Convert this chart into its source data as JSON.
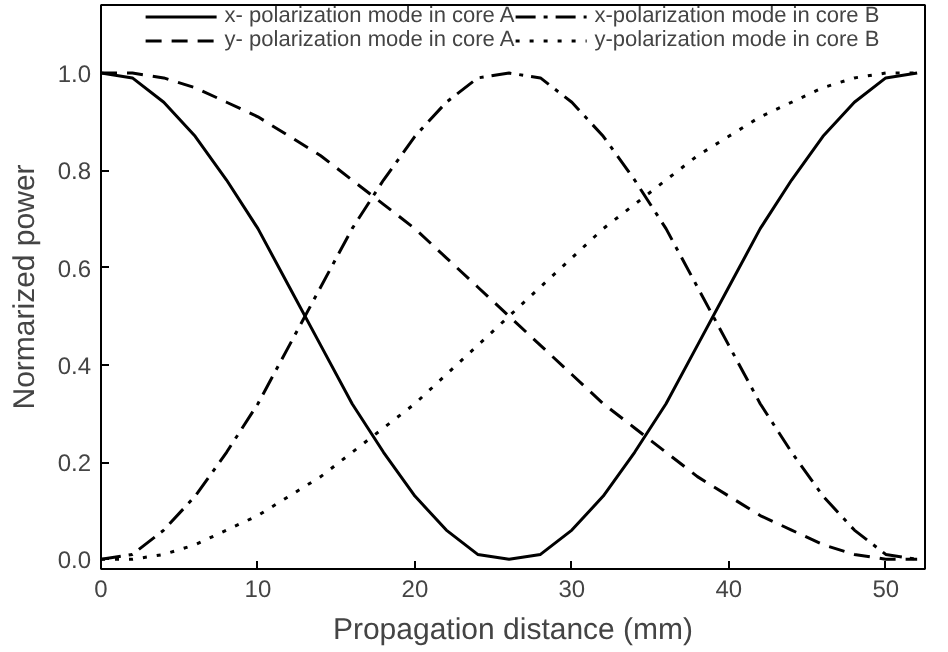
{
  "chart_data": {
    "type": "line",
    "xlabel": "Propagation distance (mm)",
    "ylabel": "Normarized power",
    "x": [
      0,
      2,
      4,
      6,
      8,
      10,
      12,
      14,
      16,
      18,
      20,
      22,
      24,
      26,
      28,
      30,
      32,
      34,
      36,
      38,
      40,
      42,
      44,
      46,
      48,
      50,
      52
    ],
    "series": [
      {
        "name": "x- polarization mode in core A",
        "color": "#000000",
        "line_style": "solid",
        "values": [
          1,
          0.99,
          0.94,
          0.87,
          0.78,
          0.68,
          0.56,
          0.44,
          0.32,
          0.22,
          0.13,
          0.06,
          0.01,
          0,
          0.01,
          0.06,
          0.13,
          0.22,
          0.32,
          0.44,
          0.56,
          0.68,
          0.78,
          0.87,
          0.94,
          0.99,
          1
        ]
      },
      {
        "name": "y- polarization mode in core A",
        "color": "#000000",
        "line_style": "dashed",
        "values": [
          1,
          1,
          0.99,
          0.97,
          0.94,
          0.91,
          0.87,
          0.83,
          0.78,
          0.73,
          0.68,
          0.62,
          0.56,
          0.5,
          0.44,
          0.38,
          0.32,
          0.27,
          0.22,
          0.17,
          0.13,
          0.09,
          0.06,
          0.03,
          0.01,
          0,
          0
        ]
      },
      {
        "name": "x-polarization mode in core B",
        "color": "#000000",
        "line_style": "dashdot",
        "values": [
          0,
          0.01,
          0.06,
          0.13,
          0.22,
          0.32,
          0.44,
          0.56,
          0.68,
          0.78,
          0.87,
          0.94,
          0.99,
          1,
          0.99,
          0.94,
          0.87,
          0.78,
          0.68,
          0.56,
          0.44,
          0.32,
          0.22,
          0.13,
          0.06,
          0.01,
          0
        ]
      },
      {
        "name": "y-polarization mode in core B",
        "color": "#000000",
        "line_style": "dotted",
        "values": [
          0,
          0,
          0.01,
          0.03,
          0.06,
          0.09,
          0.13,
          0.17,
          0.22,
          0.27,
          0.32,
          0.38,
          0.44,
          0.5,
          0.56,
          0.62,
          0.68,
          0.73,
          0.78,
          0.83,
          0.87,
          0.91,
          0.94,
          0.97,
          0.99,
          1,
          1
        ]
      }
    ],
    "xlim": [
      0,
      52.5
    ],
    "ylim": [
      -0.02,
      1.14
    ],
    "xticks": [
      0,
      10,
      20,
      30,
      40,
      50
    ],
    "yticks": [
      {
        "value": 0,
        "label": "0.0"
      },
      {
        "value": 0.2,
        "label": "0.2"
      },
      {
        "value": 0.4,
        "label": "0.4"
      },
      {
        "value": 0.6,
        "label": "0.6"
      },
      {
        "value": 0.8,
        "label": "0.8"
      },
      {
        "value": 1,
        "label": "1.0"
      }
    ],
    "grid": false,
    "legend": "top",
    "marker": "none"
  }
}
